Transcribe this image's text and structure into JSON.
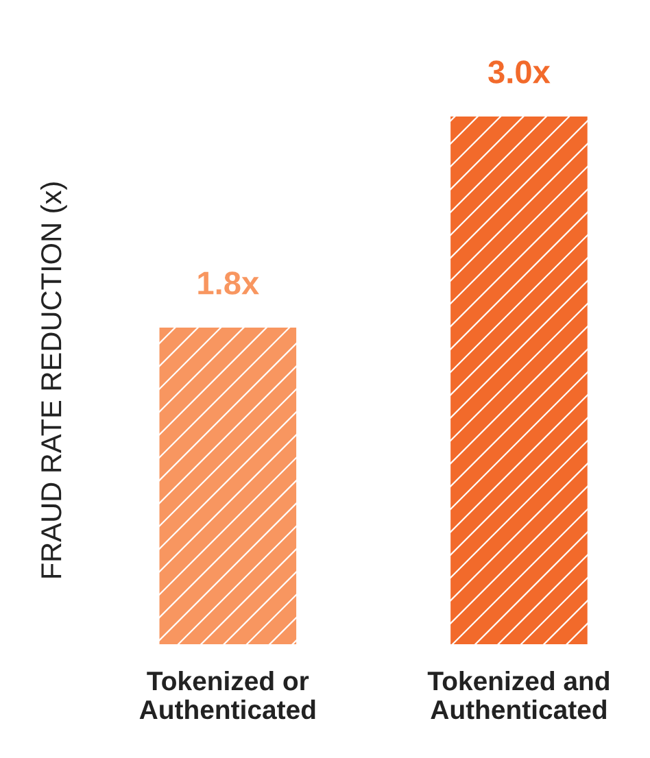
{
  "chart_data": {
    "type": "bar",
    "ylabel": "FRAUD RATE REDUCTION (x)",
    "categories": [
      "Tokenized or\nAuthenticated",
      "Tokenized and\nAuthenticated"
    ],
    "values": [
      1.8,
      3.0
    ],
    "colors": [
      "#f89660",
      "#f26a2b"
    ],
    "value_labels": [
      "1.8x",
      "3.0x"
    ],
    "grid": false,
    "legend": false
  }
}
